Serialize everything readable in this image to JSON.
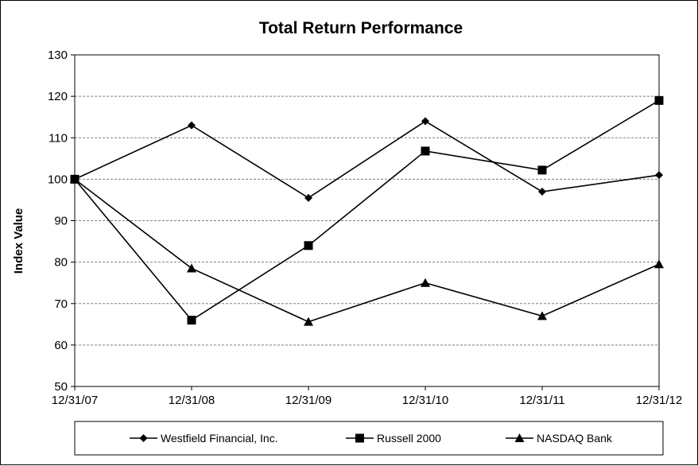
{
  "chart_data": {
    "type": "line",
    "title": "Total Return Performance",
    "xlabel": "",
    "ylabel": "Index Value",
    "categories": [
      "12/31/07",
      "12/31/08",
      "12/31/09",
      "12/31/10",
      "12/31/11",
      "12/31/12"
    ],
    "yticks": [
      50,
      60,
      70,
      80,
      90,
      100,
      110,
      120,
      130
    ],
    "ylim": [
      50,
      130
    ],
    "grid": "horizontal dashed",
    "legend_position": "bottom",
    "series": [
      {
        "name": "Westfield Financial, Inc.",
        "marker": "diamond",
        "values": [
          100,
          113,
          95.5,
          114,
          97,
          101
        ]
      },
      {
        "name": "Russell 2000",
        "marker": "square",
        "values": [
          100,
          66,
          84,
          106.8,
          102.2,
          119
        ]
      },
      {
        "name": "NASDAQ Bank",
        "marker": "triangle",
        "values": [
          100,
          78.5,
          65.6,
          75,
          67,
          79.5
        ]
      }
    ],
    "colors": {
      "line": "#000000",
      "grid": "#808080"
    }
  }
}
